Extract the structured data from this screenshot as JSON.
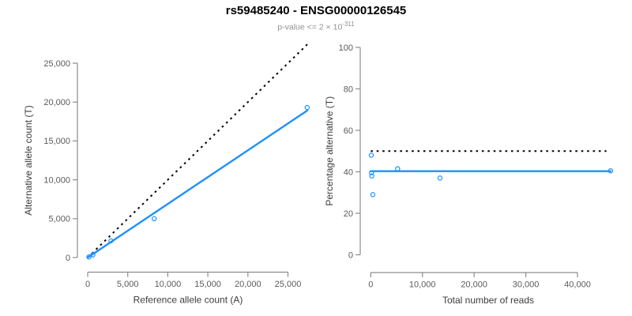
{
  "header": {
    "title": "rs59485240 - ENSG00000126545",
    "subtitle_base": "p-value <= 2 × 10",
    "subtitle_exponent": "-311"
  },
  "colors": {
    "accent_blue": "#1E90FF",
    "dotted_black": "#000000",
    "axis_line_gray": "#8c8c8c",
    "tick_label_gray": "#5a5a5a",
    "axis_title_gray": "#3c3c3c",
    "title_black": "#000000",
    "subtitle_gray": "#919191"
  },
  "chart_data": [
    {
      "type": "scatter",
      "panel": "allele-counts-panel",
      "xlabel": "Reference allele count (A)",
      "ylabel": "Alternative allele count (T)",
      "xticks": [
        0,
        5000,
        10000,
        15000,
        20000,
        25000
      ],
      "yticks": [
        0,
        5000,
        10000,
        15000,
        20000,
        25000
      ],
      "xlim": [
        0,
        27650
      ],
      "ylim": [
        0,
        27650
      ],
      "grid": false,
      "points": [
        [
          150,
          80
        ],
        [
          650,
          350
        ],
        [
          2900,
          2150
        ],
        [
          8300,
          5000
        ],
        [
          27400,
          19300
        ]
      ],
      "fit_line": {
        "x": [
          0,
          27400
        ],
        "y": [
          0,
          18900
        ]
      },
      "dotted_line": {
        "x": [
          0,
          27650
        ],
        "y": [
          0,
          27650
        ],
        "meaning": "identity y = x"
      }
    },
    {
      "type": "scatter",
      "panel": "percentage-vs-reads-panel",
      "xlabel": "Total number of reads",
      "ylabel": "Percentage alternative (T)",
      "xticks": [
        0,
        10000,
        20000,
        30000,
        40000
      ],
      "yticks": [
        0,
        20,
        40,
        60,
        80,
        100
      ],
      "xlim": [
        0,
        46500
      ],
      "ylim": [
        0,
        100
      ],
      "grid": false,
      "points": [
        [
          100,
          48
        ],
        [
          150,
          39.6
        ],
        [
          200,
          38
        ],
        [
          400,
          29
        ],
        [
          5200,
          41.5
        ],
        [
          13400,
          37
        ],
        [
          46400,
          40.5
        ]
      ],
      "fit_line": {
        "x": [
          0,
          46400
        ],
        "y": [
          40.3,
          40.3
        ]
      },
      "dotted_line": {
        "x": [
          0,
          45600
        ],
        "y": [
          50,
          50
        ],
        "meaning": "reference at 50%"
      }
    }
  ]
}
